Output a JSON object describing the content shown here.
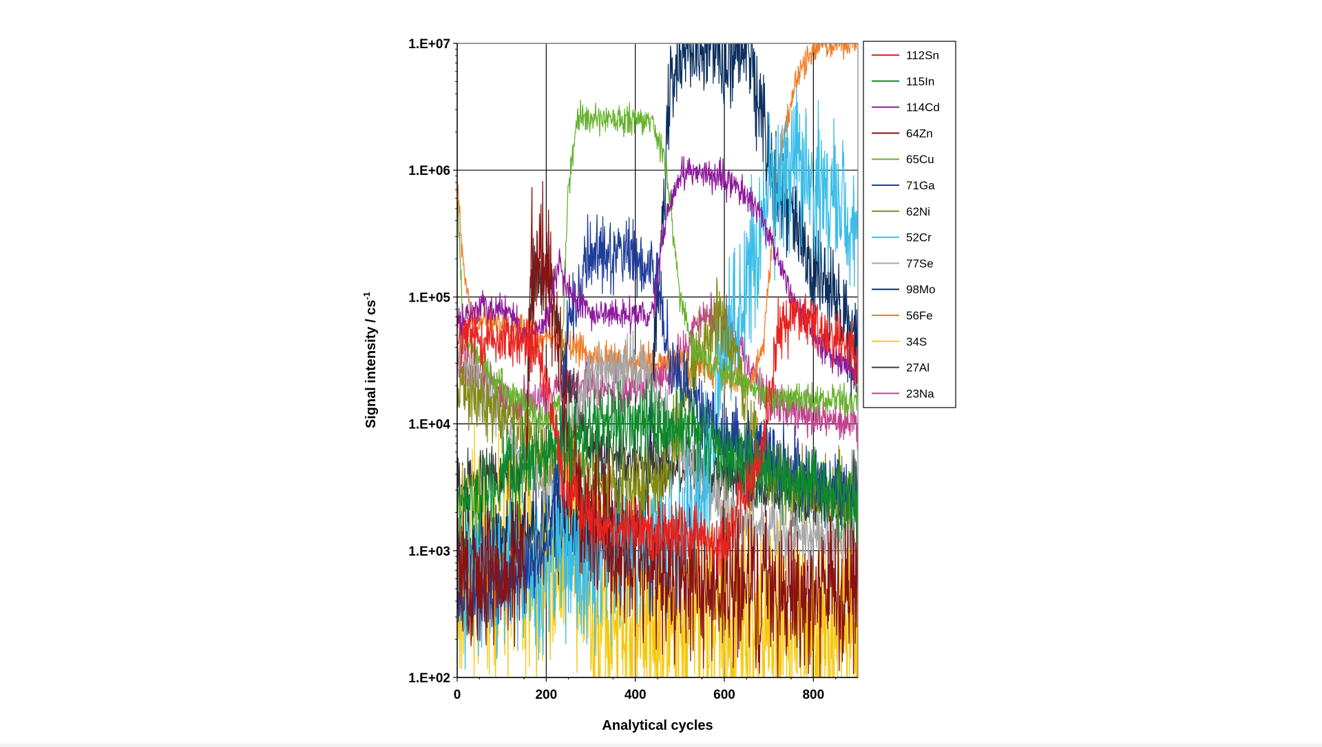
{
  "chart_data": {
    "type": "line",
    "xlabel": "Analytical cycles",
    "ylabel": "Signal intensity / cs",
    "ylabel_sup": "-1",
    "x_range": [
      0,
      900
    ],
    "x_ticks": [
      0,
      200,
      400,
      600,
      800
    ],
    "y_scale": "log",
    "y_range": [
      100,
      10000000
    ],
    "y_ticks": [
      {
        "value": 100,
        "label": "1.E+02"
      },
      {
        "value": 1000,
        "label": "1.E+03"
      },
      {
        "value": 10000,
        "label": "1.E+04"
      },
      {
        "value": 100000,
        "label": "1.E+05"
      },
      {
        "value": 1000000,
        "label": "1.E+06"
      },
      {
        "value": 10000000,
        "label": "1.E+07"
      }
    ],
    "grid": "major",
    "legend_position": "right",
    "series": [
      {
        "name": "112Sn",
        "color": "#e8231f",
        "noise": 0.12,
        "points": [
          [
            0,
            40000
          ],
          [
            20,
            48000
          ],
          [
            120,
            45000
          ],
          [
            170,
            42000
          ],
          [
            210,
            15000
          ],
          [
            240,
            3000
          ],
          [
            300,
            1800
          ],
          [
            400,
            1500
          ],
          [
            500,
            1300
          ],
          [
            600,
            1200
          ],
          [
            680,
            5000
          ],
          [
            720,
            50000
          ],
          [
            760,
            80000
          ],
          [
            800,
            60000
          ],
          [
            900,
            40000
          ]
        ]
      },
      {
        "name": "115In",
        "color": "#0e8a2c",
        "noise": 0.15,
        "points": [
          [
            0,
            2000
          ],
          [
            60,
            3000
          ],
          [
            120,
            4000
          ],
          [
            200,
            6000
          ],
          [
            300,
            9000
          ],
          [
            420,
            10000
          ],
          [
            500,
            9000
          ],
          [
            600,
            6000
          ],
          [
            700,
            4000
          ],
          [
            800,
            3000
          ],
          [
            900,
            2500
          ]
        ]
      },
      {
        "name": "114Cd",
        "color": "#8e1a9c",
        "noise": 0.06,
        "points": [
          [
            0,
            60000
          ],
          [
            50,
            85000
          ],
          [
            110,
            80000
          ],
          [
            150,
            50000
          ],
          [
            200,
            60000
          ],
          [
            230,
            200000
          ],
          [
            245,
            110000
          ],
          [
            300,
            75000
          ],
          [
            440,
            70000
          ],
          [
            460,
            300000
          ],
          [
            500,
            950000
          ],
          [
            530,
            1000000
          ],
          [
            610,
            800000
          ],
          [
            660,
            600000
          ],
          [
            700,
            300000
          ],
          [
            760,
            90000
          ],
          [
            820,
            40000
          ],
          [
            900,
            25000
          ]
        ]
      },
      {
        "name": "64Zn",
        "color": "#8a1212",
        "noise": 0.3,
        "points": [
          [
            0,
            600
          ],
          [
            150,
            700
          ],
          [
            165,
            200000
          ],
          [
            205,
            200000
          ],
          [
            230,
            30000
          ],
          [
            260,
            3000
          ],
          [
            300,
            1500
          ],
          [
            400,
            800
          ],
          [
            600,
            500
          ],
          [
            900,
            450
          ]
        ]
      },
      {
        "name": "65Cu",
        "color": "#66b22e",
        "noise": 0.06,
        "points": [
          [
            0,
            600000
          ],
          [
            15,
            50000
          ],
          [
            80,
            22000
          ],
          [
            150,
            15000
          ],
          [
            200,
            10000
          ],
          [
            230,
            15000
          ],
          [
            250,
            800000
          ],
          [
            270,
            2500000
          ],
          [
            440,
            2400000
          ],
          [
            470,
            1000000
          ],
          [
            500,
            100000
          ],
          [
            530,
            40000
          ],
          [
            600,
            25000
          ],
          [
            700,
            16000
          ],
          [
            900,
            15000
          ]
        ]
      },
      {
        "name": "71Ga",
        "color": "#1f3d99",
        "noise": 0.15,
        "points": [
          [
            0,
            400
          ],
          [
            100,
            500
          ],
          [
            200,
            1000
          ],
          [
            230,
            5000
          ],
          [
            250,
            60000
          ],
          [
            300,
            230000
          ],
          [
            400,
            230000
          ],
          [
            450,
            150000
          ],
          [
            480,
            30000
          ],
          [
            520,
            15000
          ],
          [
            600,
            8000
          ],
          [
            700,
            5000
          ],
          [
            800,
            3500
          ],
          [
            900,
            3000
          ]
        ]
      },
      {
        "name": "62Ni",
        "color": "#838a15",
        "noise": 0.15,
        "points": [
          [
            0,
            20000
          ],
          [
            60,
            15000
          ],
          [
            150,
            8000
          ],
          [
            200,
            6000
          ],
          [
            250,
            6000
          ],
          [
            300,
            3500
          ],
          [
            400,
            3000
          ],
          [
            470,
            4000
          ],
          [
            530,
            30000
          ],
          [
            590,
            70000
          ],
          [
            630,
            30000
          ],
          [
            660,
            8000
          ],
          [
            700,
            4000
          ],
          [
            800,
            3000
          ],
          [
            900,
            2500
          ]
        ]
      },
      {
        "name": "52Cr",
        "color": "#3bbde9",
        "noise": 0.3,
        "points": [
          [
            0,
            600
          ],
          [
            200,
            700
          ],
          [
            300,
            800
          ],
          [
            500,
            1200
          ],
          [
            550,
            2000
          ],
          [
            590,
            30000
          ],
          [
            640,
            100000
          ],
          [
            700,
            600000
          ],
          [
            760,
            1400000
          ],
          [
            800,
            800000
          ],
          [
            850,
            500000
          ],
          [
            900,
            480000
          ]
        ]
      },
      {
        "name": "77Se",
        "color": "#a6a6a6",
        "noise": 0.12,
        "points": [
          [
            0,
            40000
          ],
          [
            60,
            20000
          ],
          [
            120,
            8000
          ],
          [
            200,
            3000
          ],
          [
            240,
            6000
          ],
          [
            300,
            25000
          ],
          [
            400,
            30000
          ],
          [
            440,
            20000
          ],
          [
            470,
            10000
          ],
          [
            520,
            5000
          ],
          [
            600,
            2000
          ],
          [
            700,
            1500
          ],
          [
            800,
            1200
          ],
          [
            900,
            1100
          ]
        ]
      },
      {
        "name": "98Mo",
        "color": "#0b2f5e",
        "noise": 0.2,
        "points": [
          [
            0,
            1000
          ],
          [
            150,
            1200
          ],
          [
            180,
            1500
          ],
          [
            420,
            1500
          ],
          [
            450,
            100000
          ],
          [
            480,
            5000000
          ],
          [
            500,
            9500000
          ],
          [
            550,
            9500000
          ],
          [
            610,
            8000000
          ],
          [
            660,
            7500000
          ],
          [
            700,
            1000000
          ],
          [
            760,
            400000
          ],
          [
            800,
            150000
          ],
          [
            900,
            40000
          ]
        ]
      },
      {
        "name": "56Fe",
        "color": "#f07c27",
        "noise": 0.06,
        "points": [
          [
            0,
            900000
          ],
          [
            10,
            250000
          ],
          [
            30,
            70000
          ],
          [
            100,
            60000
          ],
          [
            200,
            50000
          ],
          [
            300,
            35000
          ],
          [
            400,
            30000
          ],
          [
            500,
            30000
          ],
          [
            600,
            25000
          ],
          [
            660,
            20000
          ],
          [
            690,
            50000
          ],
          [
            720,
            1000000
          ],
          [
            760,
            5000000
          ],
          [
            800,
            9000000
          ],
          [
            830,
            10000000
          ],
          [
            900,
            10000000
          ]
        ]
      },
      {
        "name": "34S",
        "color": "#f5c80f",
        "noise": 0.45,
        "points": [
          [
            0,
            800
          ],
          [
            240,
            700
          ],
          [
            250,
            3500
          ],
          [
            270,
            1000
          ],
          [
            300,
            300
          ],
          [
            900,
            250
          ]
        ]
      },
      {
        "name": "27Al",
        "color": "#3a3a3a",
        "noise": 0.12,
        "points": [
          [
            0,
            3500
          ],
          [
            150,
            4000
          ],
          [
            170,
            150000
          ],
          [
            210,
            130000
          ],
          [
            240,
            30000
          ],
          [
            300,
            6000
          ],
          [
            400,
            5000
          ],
          [
            500,
            5000
          ],
          [
            600,
            4000
          ],
          [
            700,
            3000
          ],
          [
            800,
            2500
          ],
          [
            900,
            2000
          ]
        ]
      },
      {
        "name": "23Na",
        "color": "#c2418f",
        "noise": 0.08,
        "points": [
          [
            0,
            30000
          ],
          [
            80,
            20000
          ],
          [
            130,
            14000
          ],
          [
            180,
            15000
          ],
          [
            230,
            20000
          ],
          [
            300,
            20000
          ],
          [
            400,
            18000
          ],
          [
            480,
            25000
          ],
          [
            550,
            70000
          ],
          [
            600,
            70000
          ],
          [
            650,
            30000
          ],
          [
            700,
            15000
          ],
          [
            800,
            11000
          ],
          [
            900,
            10000
          ]
        ]
      }
    ]
  }
}
